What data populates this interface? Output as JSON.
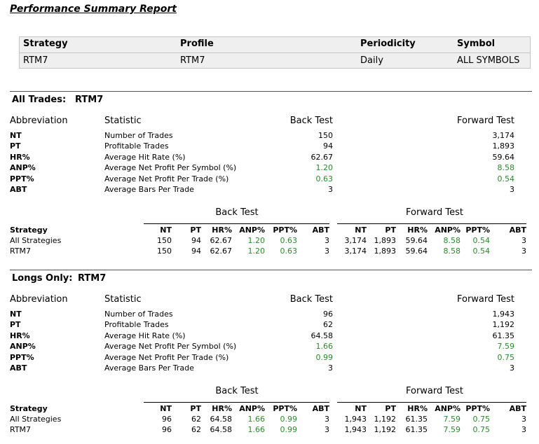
{
  "report_title": "Performance Summary Report",
  "info": {
    "headers": [
      "Strategy",
      "Profile",
      "Periodicity",
      "Symbol"
    ],
    "values": [
      "RTM7",
      "RTM7",
      "Daily",
      "ALL SYMBOLS"
    ]
  },
  "sections": [
    {
      "label": "All Trades:",
      "name": "RTM7",
      "stats_headers": [
        "Abbreviation",
        "Statistic",
        "Back Test",
        "Forward Test"
      ],
      "stats": [
        {
          "abbr": "NT",
          "statistic": "Number of Trades",
          "back": "150",
          "forward": "3,174"
        },
        {
          "abbr": "PT",
          "statistic": "Profitable Trades",
          "back": "94",
          "forward": "1,893"
        },
        {
          "abbr": "HR%",
          "statistic": "Average Hit Rate (%)",
          "back": "62.67",
          "forward": "59.64"
        },
        {
          "abbr": "ANP%",
          "statistic": "Average Net Profit Per Symbol (%)",
          "back": "1.20",
          "forward": "8.58"
        },
        {
          "abbr": "PPT%",
          "statistic": "Average Net Profit Per Trade (%)",
          "back": "0.63",
          "forward": "0.54"
        },
        {
          "abbr": "ABT",
          "statistic": "Average Bars Per Trade",
          "back": "3",
          "forward": "3"
        }
      ],
      "group_back": "Back Test",
      "group_forward": "Forward Test",
      "strategy_header": "Strategy",
      "columns": [
        "NT",
        "PT",
        "HR%",
        "ANP%",
        "PPT%",
        "ABT"
      ],
      "rows": [
        {
          "name": "All Strategies",
          "back": [
            "150",
            "94",
            "62.67",
            "1.20",
            "0.63",
            "3"
          ],
          "forward": [
            "3,174",
            "1,893",
            "59.64",
            "8.58",
            "0.54",
            "3"
          ]
        },
        {
          "name": "RTM7",
          "back": [
            "150",
            "94",
            "62.67",
            "1.20",
            "0.63",
            "3"
          ],
          "forward": [
            "3,174",
            "1,893",
            "59.64",
            "8.58",
            "0.54",
            "3"
          ]
        }
      ]
    },
    {
      "label": "Longs Only:",
      "name": "RTM7",
      "stats_headers": [
        "Abbreviation",
        "Statistic",
        "Back Test",
        "Forward Test"
      ],
      "stats": [
        {
          "abbr": "NT",
          "statistic": "Number of Trades",
          "back": "96",
          "forward": "1,943"
        },
        {
          "abbr": "PT",
          "statistic": "Profitable Trades",
          "back": "62",
          "forward": "1,192"
        },
        {
          "abbr": "HR%",
          "statistic": "Average Hit Rate (%)",
          "back": "64.58",
          "forward": "61.35"
        },
        {
          "abbr": "ANP%",
          "statistic": "Average Net Profit Per Symbol (%)",
          "back": "1.66",
          "forward": "7.59"
        },
        {
          "abbr": "PPT%",
          "statistic": "Average Net Profit Per Trade (%)",
          "back": "0.99",
          "forward": "0.75"
        },
        {
          "abbr": "ABT",
          "statistic": "Average Bars Per Trade",
          "back": "3",
          "forward": "3"
        }
      ],
      "group_back": "Back Test",
      "group_forward": "Forward Test",
      "strategy_header": "Strategy",
      "columns": [
        "NT",
        "PT",
        "HR%",
        "ANP%",
        "PPT%",
        "ABT"
      ],
      "rows": [
        {
          "name": "All Strategies",
          "back": [
            "96",
            "62",
            "64.58",
            "1.66",
            "0.99",
            "3"
          ],
          "forward": [
            "1,943",
            "1,192",
            "61.35",
            "7.59",
            "0.75",
            "3"
          ]
        },
        {
          "name": "RTM7",
          "back": [
            "96",
            "62",
            "64.58",
            "1.66",
            "0.99",
            "3"
          ],
          "forward": [
            "1,943",
            "1,192",
            "61.35",
            "7.59",
            "0.75",
            "3"
          ]
        }
      ]
    }
  ],
  "colors": {
    "positive": "#2a8a2a",
    "rule": "#555555",
    "info_bg": "#efefef"
  }
}
